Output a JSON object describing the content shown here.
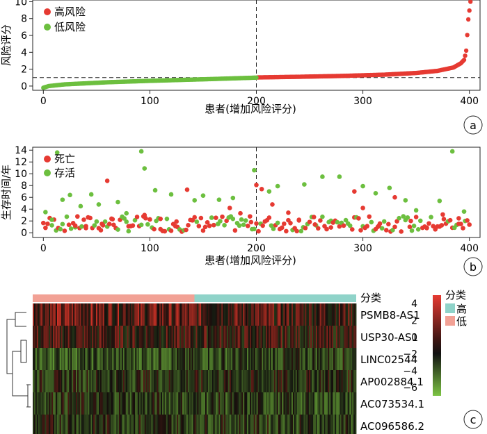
{
  "chart_data": [
    {
      "type": "scatter",
      "panel_label": "a",
      "xlabel": "患者(增加风险评分)",
      "ylabel": "风险评分",
      "xlim": [
        -10,
        410
      ],
      "ylim": [
        -0.5,
        10.2
      ],
      "xticks": [
        0,
        100,
        200,
        300,
        400
      ],
      "yticks": [
        0,
        2,
        4,
        6,
        8,
        10
      ],
      "cutoff_x": 200,
      "cutoff_y": 1.0,
      "legend_position": "top-left",
      "series": [
        {
          "name": "高风险",
          "color": "#e63a32",
          "x_range": [
            201,
            401
          ],
          "curve_samples": [
            [
              201,
              1.02
            ],
            [
              240,
              1.1
            ],
            [
              280,
              1.2
            ],
            [
              320,
              1.35
            ],
            [
              350,
              1.55
            ],
            [
              370,
              1.8
            ],
            [
              385,
              2.2
            ],
            [
              392,
              2.7
            ],
            [
              395,
              3.1
            ],
            [
              396,
              3.6
            ],
            [
              397,
              4.2
            ],
            [
              399,
              7.9
            ],
            [
              401,
              10.0
            ]
          ]
        },
        {
          "name": "低风险",
          "color": "#6cbf3f",
          "x_range": [
            0,
            200
          ],
          "curve_samples": [
            [
              0,
              -0.2
            ],
            [
              5,
              0.0
            ],
            [
              20,
              0.2
            ],
            [
              60,
              0.45
            ],
            [
              100,
              0.62
            ],
            [
              150,
              0.8
            ],
            [
              200,
              1.0
            ]
          ]
        }
      ]
    },
    {
      "type": "scatter",
      "panel_label": "b",
      "xlabel": "患者(增加风险评分)",
      "ylabel": "生存时间/年",
      "xlim": [
        -10,
        410
      ],
      "ylim": [
        -0.8,
        14.5
      ],
      "xticks": [
        0,
        100,
        200,
        300,
        400
      ],
      "yticks": [
        0,
        2,
        4,
        6,
        8,
        10,
        12,
        14
      ],
      "cutoff_x": 200,
      "legend_position": "top-left",
      "series": [
        {
          "name": "死亡",
          "color": "#e63a32",
          "points": [
            [
              30,
              1.2
            ],
            [
              40,
              0.8
            ],
            [
              55,
              1.5
            ],
            [
              60,
              8.8
            ],
            [
              65,
              2.3
            ],
            [
              80,
              1.1
            ],
            [
              95,
              3.0
            ],
            [
              110,
              0.6
            ],
            [
              125,
              1.9
            ],
            [
              135,
              7.3
            ],
            [
              140,
              2.1
            ],
            [
              160,
              1.3
            ],
            [
              175,
              4.2
            ],
            [
              185,
              3.3
            ],
            [
              195,
              1.8
            ],
            [
              200,
              8.1
            ],
            [
              205,
              7.4
            ],
            [
              215,
              4.8
            ],
            [
              230,
              3.4
            ],
            [
              240,
              2.2
            ],
            [
              255,
              1.4
            ],
            [
              270,
              0.9
            ],
            [
              292,
              7.0
            ],
            [
              300,
              4.2
            ],
            [
              315,
              1.2
            ],
            [
              330,
              6.0
            ],
            [
              345,
              2.0
            ],
            [
              360,
              0.8
            ],
            [
              375,
              3.1
            ],
            [
              390,
              1.5
            ]
          ]
        },
        {
          "name": "存活",
          "color": "#6cbf3f",
          "points": [
            [
              2,
              3.5
            ],
            [
              8,
              2.2
            ],
            [
              13,
              13.6
            ],
            [
              18,
              5.6
            ],
            [
              25,
              6.4
            ],
            [
              35,
              4.5
            ],
            [
              45,
              6.5
            ],
            [
              52,
              4.8
            ],
            [
              70,
              5.2
            ],
            [
              78,
              3.3
            ],
            [
              92,
              13.8
            ],
            [
              95,
              10.9
            ],
            [
              105,
              7.2
            ],
            [
              120,
              6.5
            ],
            [
              142,
              5.5
            ],
            [
              150,
              6.3
            ],
            [
              165,
              5.6
            ],
            [
              178,
              5.9
            ],
            [
              198,
              10.6
            ],
            [
              212,
              7.0
            ],
            [
              220,
              7.9
            ],
            [
              245,
              8.2
            ],
            [
              262,
              9.5
            ],
            [
              278,
              9.5
            ],
            [
              300,
              7.9
            ],
            [
              312,
              6.7
            ],
            [
              325,
              7.6
            ],
            [
              340,
              5.5
            ],
            [
              350,
              3.8
            ],
            [
              372,
              5.4
            ],
            [
              384,
              13.8
            ],
            [
              395,
              3.6
            ]
          ]
        }
      ]
    },
    {
      "type": "heatmap",
      "panel_label": "c",
      "rows": [
        "PSMB8-AS1",
        "USP30-AS1",
        "LINC02544",
        "AP002884.1",
        "AC073534.1",
        "AC096586.2"
      ],
      "annotation_title": "分类",
      "annotation_split": 200,
      "colorbar": {
        "ticks": [
          4,
          2,
          0,
          -2,
          -4,
          -6
        ],
        "range": [
          -7,
          5
        ]
      },
      "legend": {
        "title": "分类",
        "items": [
          {
            "label": "高",
            "color": "#8fd3c9"
          },
          {
            "label": "低",
            "color": "#f2a195"
          }
        ]
      }
    }
  ]
}
